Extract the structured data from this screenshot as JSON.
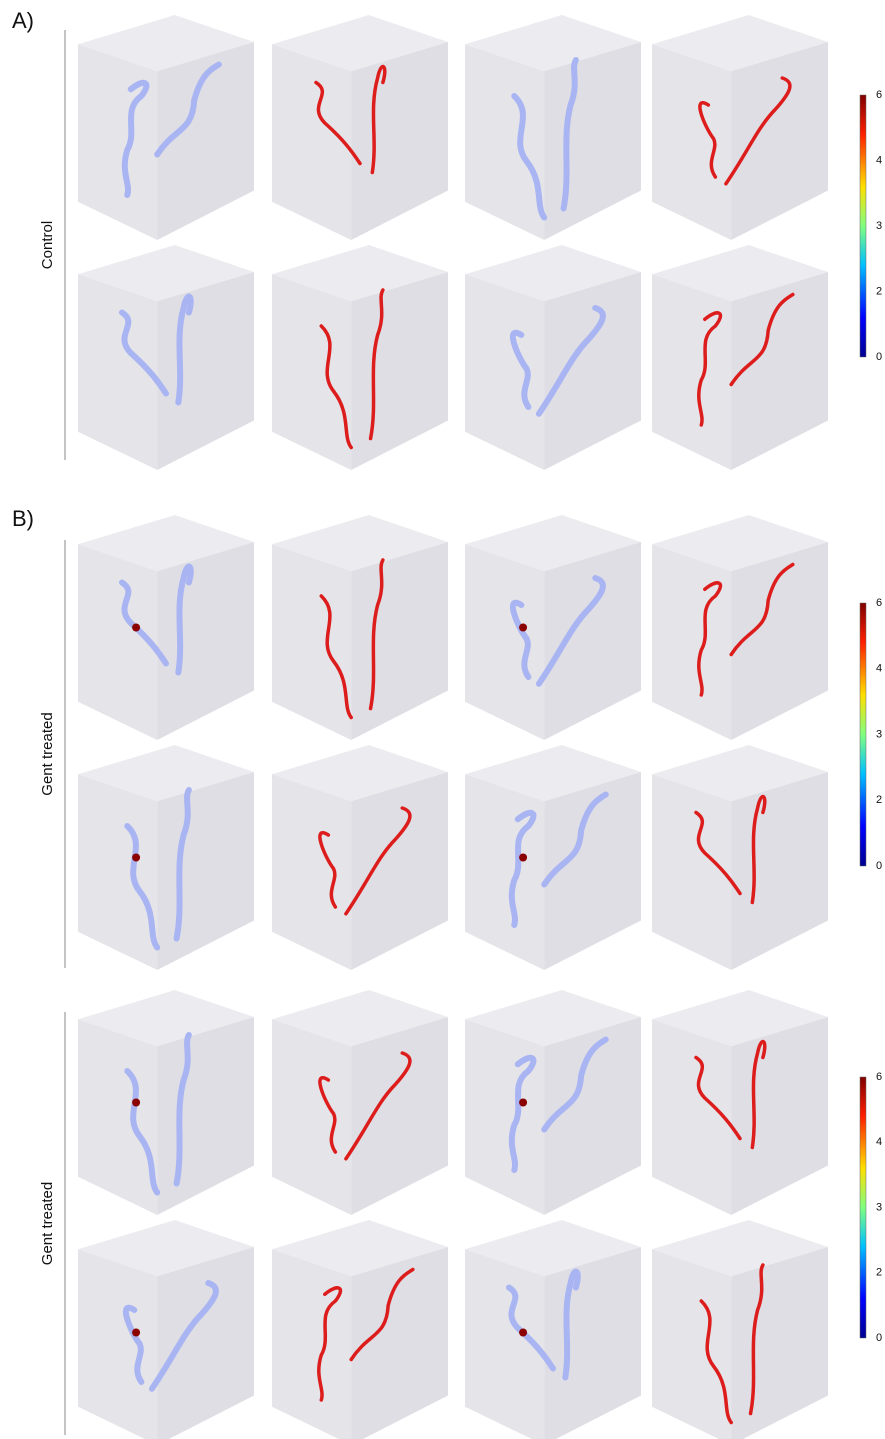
{
  "panels": [
    {
      "label": "A)"
    },
    {
      "label": "B)"
    }
  ],
  "groups": [
    {
      "label": "Control",
      "colorbar_ticks": [
        6,
        4,
        3,
        2,
        0
      ]
    },
    {
      "label": "Gent treated",
      "colorbar_ticks": [
        6,
        4,
        3,
        2,
        0
      ]
    },
    {
      "label": "Gent treated",
      "colorbar_ticks": [
        6,
        4,
        3,
        2,
        0
      ]
    }
  ]
}
